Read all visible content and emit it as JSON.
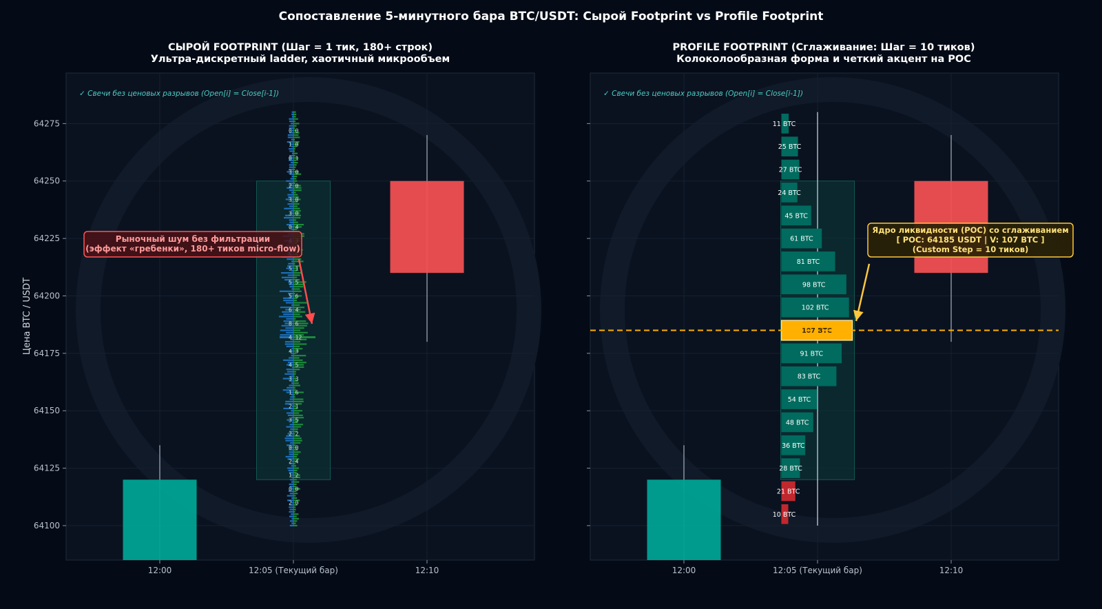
{
  "title": "Сопоставление 5-минутного бара BTC/USDT: Сырой Footprint vs Profile Footprint",
  "colors": {
    "background": "#050b16",
    "panel": "#0a1220",
    "bull": "#00a393",
    "bear": "#f05052",
    "buy_volume": "#1c8a3c",
    "sell_volume": "#1c6fb8",
    "profile_bar": "#006b5e",
    "profile_low": "#c0282e",
    "poc": "#ffb000",
    "note": "#4ecdc4"
  },
  "ylabel": "Цена BTC / USDT",
  "left_panel": {
    "title_line1": "СЫРОЙ FOOTPRINT (Шаг = 1 тик, 180+ строк)",
    "title_line2": "Ультра-дискретный ladder, хаотичный микрообъем",
    "note": "✓ Свечи без ценовых разрывов (Open[i] = Close[i-1])",
    "annotation": {
      "line1": "Рыночный шум без фильтрации",
      "line2": "(эффект «гребенки», 180+ тиков micro-flow)"
    }
  },
  "right_panel": {
    "title_line1": "PROFILE FOOTPRINT (Сглаживание: Шаг = 10 тиков)",
    "title_line2": "Колоколообразная форма и четкий акцент на POC",
    "note": "✓ Свечи без ценовых разрывов (Open[i] = Close[i-1])",
    "annotation": {
      "line1": "Ядро ликвидности (POC) со сглаживанием",
      "line2": "[ POC: 64185 USDT | V: 107 BTC ]",
      "line3": "(Custom Step = 10 тиков)"
    }
  },
  "chart_data": [
    {
      "type": "candlestick",
      "panel": "left",
      "title": "СЫРОЙ FOOTPRINT (Шаг = 1 тик, 180+ строк)",
      "ylabel": "Цена BTC / USDT",
      "ylim": [
        64085,
        64297
      ],
      "yticks": [
        64100,
        64125,
        64150,
        64175,
        64200,
        64225,
        64250,
        64275
      ],
      "categories": [
        "12:00",
        "12:05 (Текущий бар)",
        "12:10"
      ],
      "candles": [
        {
          "x": "12:00",
          "open": 64085,
          "high": 64135,
          "low": 64085,
          "close": 64120
        },
        {
          "x": "12:05 (Текущий бар)",
          "open": 64120,
          "high": 64280,
          "low": 64100,
          "close": 64250
        },
        {
          "x": "12:10",
          "open": 64250,
          "high": 64270,
          "low": 64180,
          "close": 64210
        }
      ],
      "tick_ladder_labels": [
        {
          "price": 64272,
          "text": "0 0"
        },
        {
          "price": 64266,
          "text": "1 0"
        },
        {
          "price": 64260,
          "text": "0 1"
        },
        {
          "price": 64254,
          "text": "3 0"
        },
        {
          "price": 64248,
          "text": "2 0"
        },
        {
          "price": 64242,
          "text": "3 0"
        },
        {
          "price": 64236,
          "text": "3 0"
        },
        {
          "price": 64230,
          "text": "0 4"
        },
        {
          "price": 64224,
          "text": "4 3"
        },
        {
          "price": 64218,
          "text": "5 5"
        },
        {
          "price": 64212,
          "text": "5 1"
        },
        {
          "price": 64206,
          "text": "5 5"
        },
        {
          "price": 64200,
          "text": "5 6"
        },
        {
          "price": 64194,
          "text": "6 4"
        },
        {
          "price": 64188,
          "text": "8 6"
        },
        {
          "price": 64182,
          "text": "4 12"
        },
        {
          "price": 64176,
          "text": "4 3"
        },
        {
          "price": 64170,
          "text": "4 5"
        },
        {
          "price": 64164,
          "text": "3 3"
        },
        {
          "price": 64158,
          "text": "1 6"
        },
        {
          "price": 64152,
          "text": "2 1"
        },
        {
          "price": 64146,
          "text": "3 5"
        },
        {
          "price": 64140,
          "text": "2 2"
        },
        {
          "price": 64134,
          "text": "0 0"
        },
        {
          "price": 64128,
          "text": "2 4"
        },
        {
          "price": 64122,
          "text": "1 2"
        },
        {
          "price": 64116,
          "text": "0 0"
        },
        {
          "price": 64110,
          "text": "2 0"
        }
      ]
    },
    {
      "type": "candlestick",
      "panel": "right",
      "title": "PROFILE FOOTPRINT (Сглаживание: Шаг = 10 тиков)",
      "ylim": [
        64085,
        64297
      ],
      "yticks": [
        64100,
        64125,
        64150,
        64175,
        64200,
        64225,
        64250,
        64275
      ],
      "categories": [
        "12:00",
        "12:05 (Текущий бар)",
        "12:10"
      ],
      "candles": [
        {
          "x": "12:00",
          "open": 64085,
          "high": 64135,
          "low": 64085,
          "close": 64120
        },
        {
          "x": "12:05 (Текущий бар)",
          "open": 64120,
          "high": 64280,
          "low": 64100,
          "close": 64250
        },
        {
          "x": "12:10",
          "open": 64250,
          "high": 64270,
          "low": 64180,
          "close": 64210
        }
      ],
      "profile": [
        {
          "price": 64275,
          "volume": 11,
          "label": "11 BTC"
        },
        {
          "price": 64265,
          "volume": 25,
          "label": "25 BTC"
        },
        {
          "price": 64255,
          "volume": 27,
          "label": "27 BTC"
        },
        {
          "price": 64245,
          "volume": 24,
          "label": "24 BTC"
        },
        {
          "price": 64235,
          "volume": 45,
          "label": "45 BTC"
        },
        {
          "price": 64225,
          "volume": 61,
          "label": "61 BTC"
        },
        {
          "price": 64215,
          "volume": 81,
          "label": "81 BTC"
        },
        {
          "price": 64205,
          "volume": 98,
          "label": "98 BTC"
        },
        {
          "price": 64195,
          "volume": 102,
          "label": "102 BTC"
        },
        {
          "price": 64185,
          "volume": 107,
          "label": "107 BTC",
          "poc": true
        },
        {
          "price": 64175,
          "volume": 91,
          "label": "91 BTC"
        },
        {
          "price": 64165,
          "volume": 83,
          "label": "83 BTC"
        },
        {
          "price": 64155,
          "volume": 54,
          "label": "54 BTC"
        },
        {
          "price": 64145,
          "volume": 48,
          "label": "48 BTC"
        },
        {
          "price": 64135,
          "volume": 36,
          "label": "36 BTC"
        },
        {
          "price": 64125,
          "volume": 28,
          "label": "28 BTC"
        },
        {
          "price": 64115,
          "volume": 21,
          "label": "21 BTC",
          "low": true
        },
        {
          "price": 64105,
          "volume": 10,
          "label": "10 BTC",
          "low": true
        }
      ],
      "poc_price": 64185
    }
  ]
}
